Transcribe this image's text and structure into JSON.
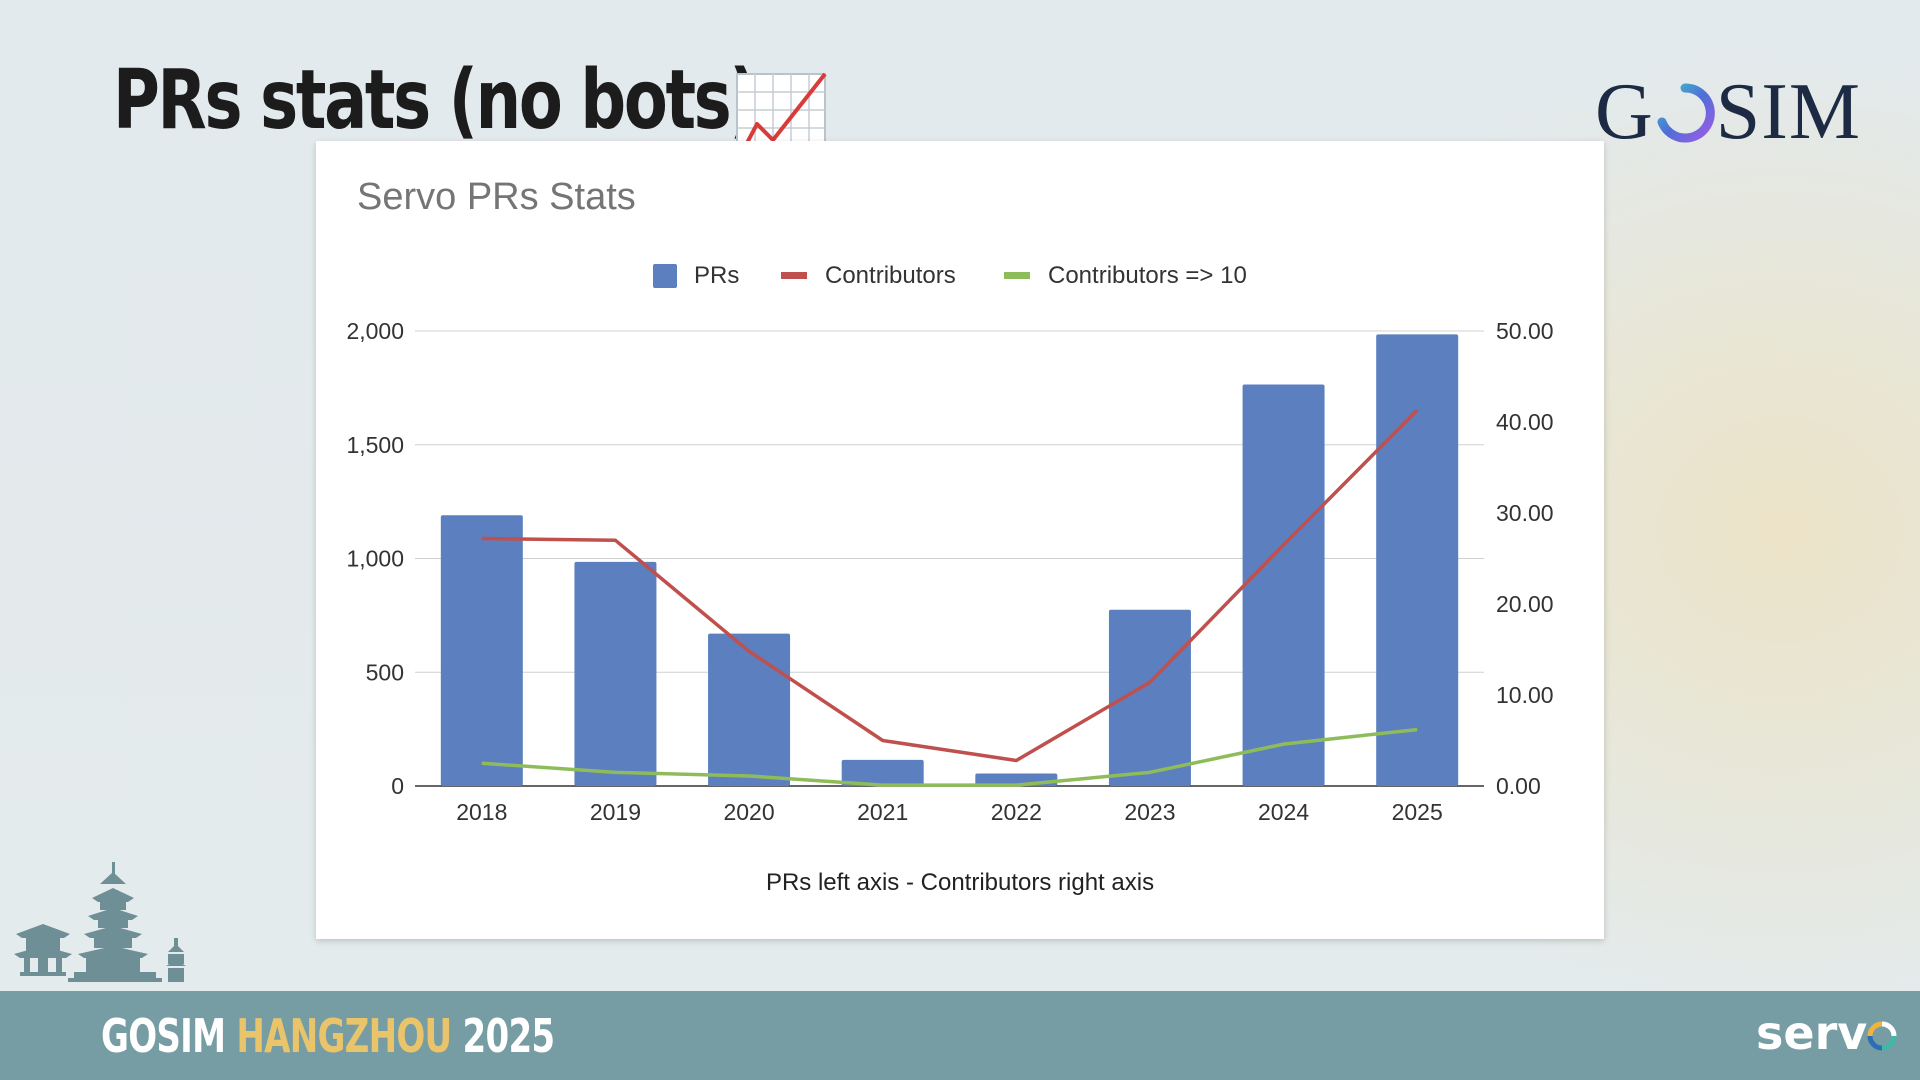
{
  "slide": {
    "title": "PRs stats (no bots)",
    "title_emoji": "📈",
    "logo_left": "G",
    "logo_right": "SIM",
    "footer_left": "GOSIM",
    "footer_city": "HANGZHOU",
    "footer_year": "2025",
    "servo_text": "serv"
  },
  "chart_data": {
    "type": "bar",
    "title": "Servo PRs Stats",
    "xlabel": "PRs left axis - Contributors right axis",
    "categories": [
      "2018",
      "2019",
      "2020",
      "2021",
      "2022",
      "2023",
      "2024",
      "2025"
    ],
    "legend_position": "top",
    "grid": true,
    "y_left": {
      "ticks": [
        "2,000",
        "1,500",
        "1,000",
        "500",
        "0"
      ],
      "range": [
        0,
        2000
      ]
    },
    "y_right": {
      "ticks": [
        "50.00",
        "40.00",
        "30.00",
        "20.00",
        "10.00",
        "0.00"
      ],
      "range": [
        0,
        50
      ]
    },
    "series": [
      {
        "name": "PRs",
        "type": "bar",
        "axis": "left",
        "color": "#5b7fbf",
        "values": [
          1190,
          985,
          670,
          115,
          55,
          775,
          1765,
          1985
        ]
      },
      {
        "name": "Contributors",
        "type": "line",
        "axis": "right",
        "color": "#c0504d",
        "values": [
          27.2,
          27.0,
          14.8,
          5.0,
          2.8,
          11.4,
          26.5,
          41.3
        ]
      },
      {
        "name": "Contributors => 10",
        "type": "line",
        "axis": "right",
        "color": "#8fbc5a",
        "values": [
          2.5,
          1.5,
          1.1,
          0.1,
          0.1,
          1.5,
          4.6,
          6.2
        ]
      }
    ]
  }
}
